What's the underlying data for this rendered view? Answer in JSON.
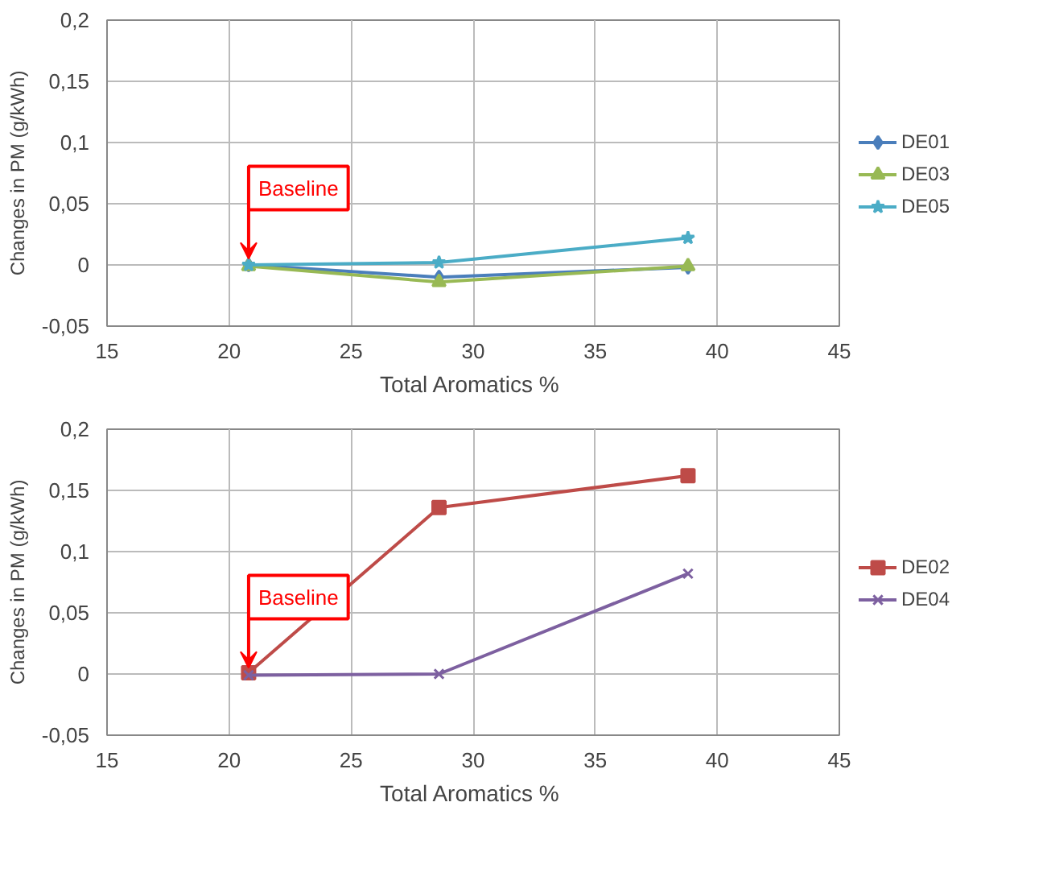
{
  "chart_data": [
    {
      "type": "line",
      "xlabel": "Total Aromatics  %",
      "ylabel": "Changes in PM (g/kWh)",
      "x": [
        20.8,
        28.6,
        38.8
      ],
      "series": [
        {
          "name": "DE01",
          "color": "#4a7ebb",
          "marker": "diamond",
          "values": [
            0,
            -0.01,
            -0.002
          ]
        },
        {
          "name": "DE03",
          "color": "#98b954",
          "marker": "triangle",
          "values": [
            -0.001,
            -0.014,
            -0.001
          ]
        },
        {
          "name": "DE05",
          "color": "#4bacc6",
          "marker": "star",
          "values": [
            0,
            0.002,
            0.022
          ]
        }
      ],
      "xlim": [
        15,
        45
      ],
      "xticks": [
        15,
        20,
        25,
        30,
        35,
        40,
        45
      ],
      "ylim": [
        -0.05,
        0.2
      ],
      "yticks": [
        {
          "value": -0.05,
          "label": "-0,05"
        },
        0,
        {
          "value": 0.05,
          "label": "0,05"
        },
        {
          "value": 0.1,
          "label": "0,1"
        },
        {
          "value": 0.15,
          "label": "0,15"
        },
        {
          "value": 0.2,
          "label": "0,2"
        }
      ],
      "grid": true,
      "legend": "right",
      "annotations": [
        {
          "text": "Baseline",
          "x": 20.8,
          "y": 0
        }
      ]
    },
    {
      "type": "line",
      "xlabel": "Total Aromatics  %",
      "ylabel": "Changes in PM (g/kWh)",
      "x": [
        20.8,
        28.6,
        38.8
      ],
      "series": [
        {
          "name": "DE02",
          "color": "#be4b48",
          "marker": "square",
          "values": [
            0.001,
            0.136,
            0.162
          ]
        },
        {
          "name": "DE04",
          "color": "#7d60a0",
          "marker": "cross",
          "values": [
            -0.001,
            0,
            0.082
          ]
        }
      ],
      "xlim": [
        15,
        45
      ],
      "xticks": [
        15,
        20,
        25,
        30,
        35,
        40,
        45
      ],
      "ylim": [
        -0.05,
        0.2
      ],
      "yticks": [
        {
          "value": -0.05,
          "label": "-0,05"
        },
        0,
        {
          "value": 0.05,
          "label": "0,05"
        },
        {
          "value": 0.1,
          "label": "0,1"
        },
        {
          "value": 0.15,
          "label": "0,15"
        },
        {
          "value": 0.2,
          "label": "0,2"
        }
      ],
      "grid": true,
      "legend": "right",
      "annotations": [
        {
          "text": "Baseline",
          "x": 20.8,
          "y": 0
        }
      ]
    }
  ]
}
